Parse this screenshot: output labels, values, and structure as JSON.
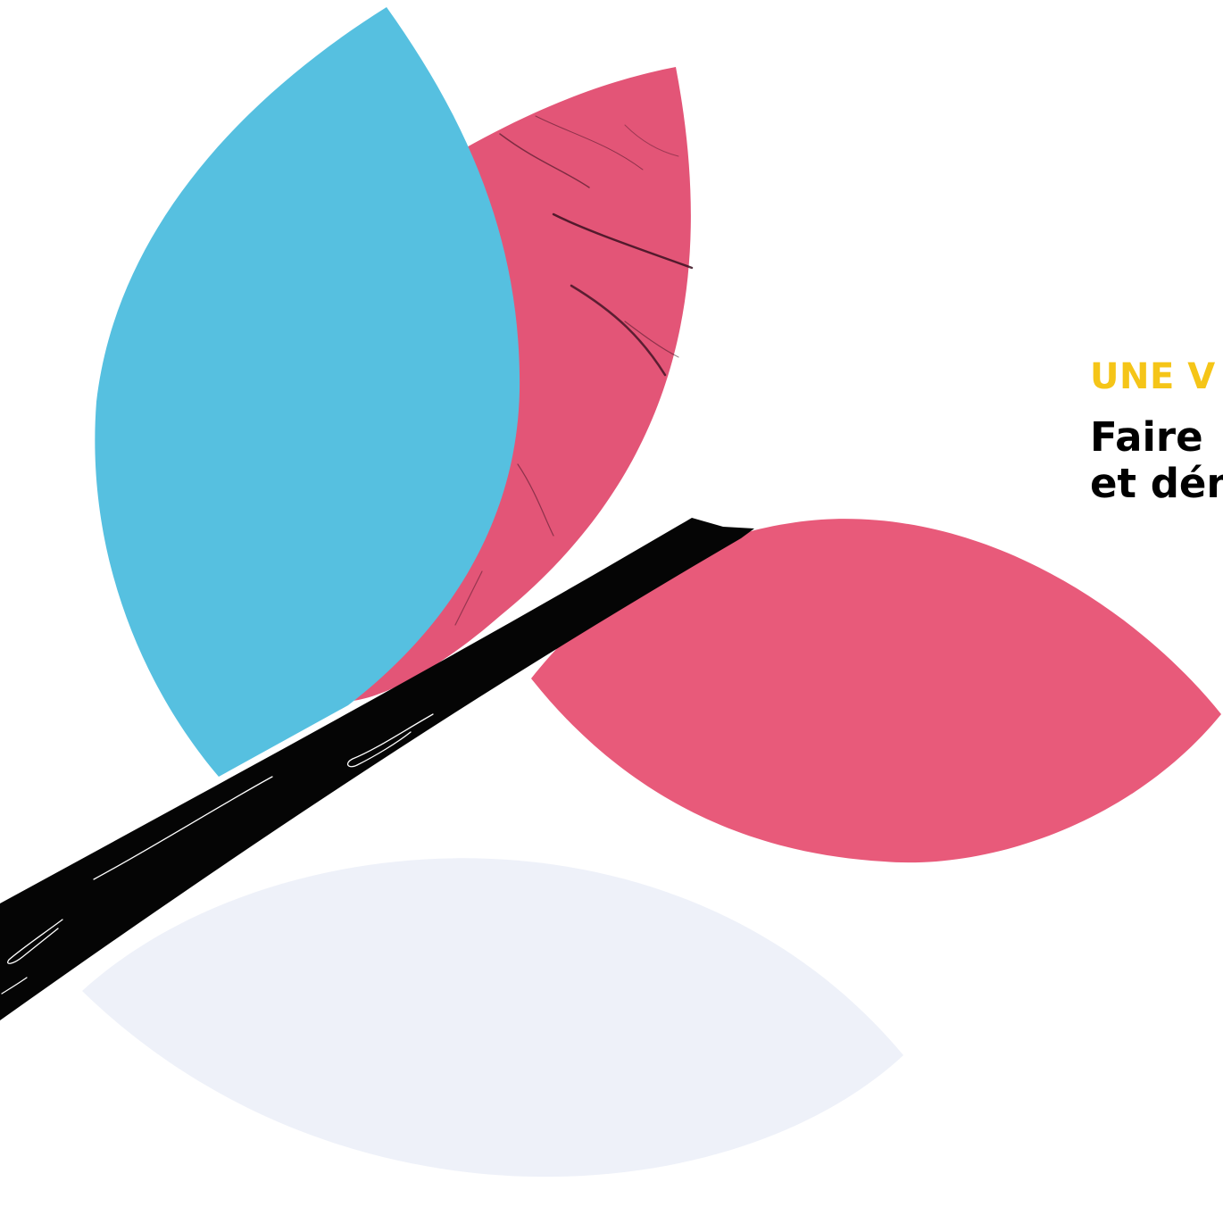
{
  "hero": {
    "kicker": "UNE V",
    "headline_line1": "Faire",
    "headline_line2": "et dén"
  },
  "colors": {
    "kicker": "#f5c518",
    "petal_blue": "#56c0e0",
    "petal_pink": "#e85a7a",
    "petal_pink_marble": "#e35577",
    "petal_pale": "#eef1f9",
    "branch": "#050505",
    "headline": "#000000"
  },
  "icons": [
    "leaf-blue-icon",
    "leaf-pink-marble-icon",
    "leaf-pink-icon",
    "leaf-pale-icon",
    "branch-icon"
  ]
}
